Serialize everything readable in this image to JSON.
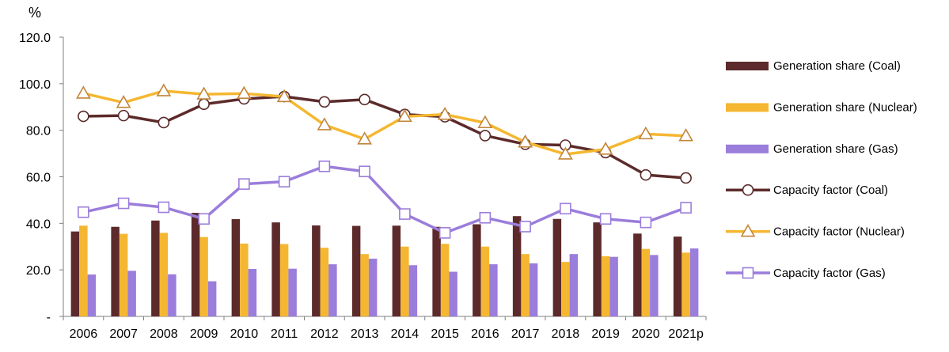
{
  "chart_data": {
    "type": "bar",
    "y_unit_label": "%",
    "categories": [
      "2006",
      "2007",
      "2008",
      "2009",
      "2010",
      "2011",
      "2012",
      "2013",
      "2014",
      "2015",
      "2016",
      "2017",
      "2018",
      "2019",
      "2020",
      "2021p"
    ],
    "ylim": [
      0,
      120
    ],
    "yticks": [
      "-",
      "20.0",
      "40.0",
      "60.0",
      "80.0",
      "100.0",
      "120.0"
    ],
    "grid": false,
    "legend_position": "right",
    "bar_series": [
      {
        "name": "Generation share (Coal)",
        "color": "#5c2a2a",
        "values": [
          36.5,
          38.5,
          41.2,
          44.5,
          41.8,
          40.4,
          39.1,
          38.9,
          39.0,
          38.5,
          39.6,
          43.1,
          41.9,
          40.4,
          35.6,
          34.3
        ]
      },
      {
        "name": "Generation share (Nuclear)",
        "color": "#f5b731",
        "values": [
          39.0,
          35.5,
          35.9,
          34.1,
          31.3,
          31.1,
          29.5,
          26.8,
          30.0,
          31.2,
          30.0,
          26.8,
          23.4,
          25.9,
          29.0,
          27.4
        ]
      },
      {
        "name": "Generation share (Gas)",
        "color": "#9b7ddb",
        "values": [
          18.0,
          19.6,
          18.1,
          15.1,
          20.4,
          20.5,
          22.4,
          24.8,
          22.0,
          19.2,
          22.4,
          22.8,
          26.8,
          25.6,
          26.4,
          29.2
        ]
      }
    ],
    "line_series": [
      {
        "name": "Capacity factor (Coal)",
        "color": "#5c2a2a",
        "marker": "circle",
        "values": [
          86.0,
          86.3,
          83.3,
          91.2,
          93.5,
          94.5,
          92.2,
          93.2,
          86.8,
          85.8,
          77.7,
          74.0,
          73.6,
          70.4,
          60.8,
          59.5
        ]
      },
      {
        "name": "Capacity factor (Nuclear)",
        "color": "#f5b731",
        "marker_stroke": "#c2853a",
        "marker": "triangle",
        "values": [
          95.9,
          91.9,
          96.9,
          95.5,
          95.8,
          94.4,
          82.3,
          76.2,
          85.9,
          86.8,
          83.2,
          74.9,
          69.7,
          71.8,
          78.4,
          77.6
        ]
      },
      {
        "name": "Capacity factor (Gas)",
        "color": "#9b7ddb",
        "marker": "square",
        "values": [
          44.8,
          48.6,
          46.9,
          41.9,
          56.9,
          57.9,
          64.5,
          62.3,
          44.0,
          35.9,
          42.4,
          38.6,
          46.3,
          41.9,
          40.4,
          46.7
        ]
      }
    ]
  }
}
